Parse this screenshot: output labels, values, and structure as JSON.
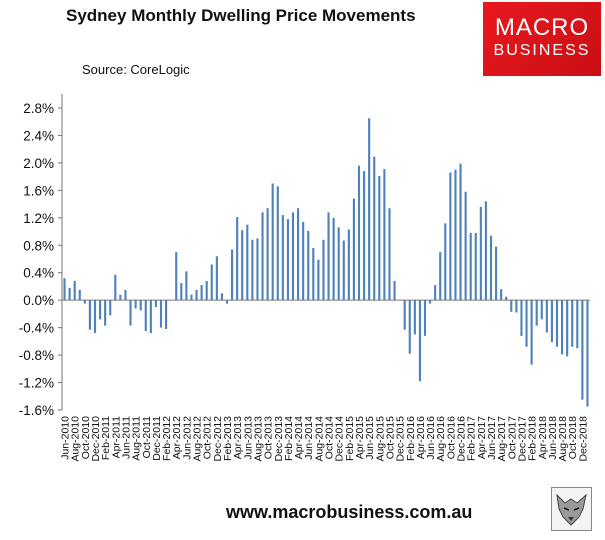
{
  "header": {
    "title": "Sydney Monthly Dwelling Price Movements",
    "source": "Source: CoreLogic"
  },
  "logo": {
    "line1": "MACRO",
    "line2": "BUSINESS"
  },
  "footer": {
    "url": "www.macrobusiness.com.au"
  },
  "colors": {
    "bar": "#4f81bd",
    "logo_red": "#e8191f"
  },
  "icons": {
    "logo": "macrobusiness-logo",
    "wolf": "wolf-emblem"
  },
  "chart_data": {
    "type": "bar",
    "title": "Sydney Monthly Dwelling Price Movements",
    "ylim": [
      -0.016,
      0.028
    ],
    "y_ticks": [
      "2.8%",
      "2.4%",
      "2.0%",
      "1.6%",
      "1.2%",
      "0.8%",
      "0.4%",
      "0.0%",
      "-0.4%",
      "-0.8%",
      "-1.2%",
      "-1.6%"
    ],
    "y_tick_values": [
      0.028,
      0.024,
      0.02,
      0.016,
      0.012,
      0.008,
      0.004,
      0.0,
      -0.004,
      -0.008,
      -0.012,
      -0.016
    ],
    "x_tick_labels": [
      "Jun-2010",
      "Aug-2010",
      "Oct-2010",
      "Dec-2010",
      "Feb-2011",
      "Apr-2011",
      "Jun-2011",
      "Aug-2011",
      "Oct-2011",
      "Dec-2011",
      "Feb-2012",
      "Apr-2012",
      "Jun-2012",
      "Aug-2012",
      "Oct-2012",
      "Dec-2012",
      "Feb-2013",
      "Apr-2013",
      "Jun-2013",
      "Aug-2013",
      "Oct-2013",
      "Dec-2013",
      "Feb-2014",
      "Apr-2014",
      "Jun-2014",
      "Aug-2014",
      "Oct-2014",
      "Dec-2014",
      "Feb-2015",
      "Apr-2015",
      "Jun-2015",
      "Aug-2015",
      "Oct-2015",
      "Dec-2015",
      "Feb-2016",
      "Apr-2016",
      "Jun-2016",
      "Aug-2016",
      "Oct-2016",
      "Dec-2016",
      "Feb-2017",
      "Apr-2017",
      "Jun-2017",
      "Aug-2017",
      "Oct-2017",
      "Dec-2017",
      "Feb-2018",
      "Apr-2018",
      "Jun-2018",
      "Aug-2018",
      "Oct-2018",
      "Dec-2018"
    ],
    "start_period": "Jun-2010",
    "grid": false,
    "legend": "none",
    "series": [
      {
        "values": [
          0.0032,
          0.0018,
          0.0028,
          0.0015,
          -0.0005,
          -0.0043,
          -0.0048,
          -0.0028,
          -0.0037,
          -0.0022,
          0.0037,
          0.0008,
          0.0015,
          -0.0037,
          -0.0012,
          -0.0015,
          -0.0045,
          -0.0048,
          -0.001,
          -0.004,
          -0.0042,
          0.0,
          0.007,
          0.0025,
          0.0042,
          0.0008,
          0.0015,
          0.0022,
          0.0028,
          0.0052,
          0.0064,
          0.001,
          -0.0005,
          0.0074,
          0.0121,
          0.0102,
          0.011,
          0.0088,
          0.009,
          0.0128,
          0.0134,
          0.017,
          0.0166,
          0.0124,
          0.0118,
          0.0128,
          0.0134,
          0.0114,
          0.0101,
          0.0076,
          0.0059,
          0.0088,
          0.0128,
          0.012,
          0.0106,
          0.0087,
          0.0103,
          0.0148,
          0.0196,
          0.0188,
          0.0265,
          0.0209,
          0.0181,
          0.0191,
          0.0134,
          0.0028,
          0.0,
          -0.0043,
          -0.0078,
          -0.005,
          -0.0118,
          -0.0052,
          -0.0005,
          0.0022,
          0.007,
          0.0112,
          0.0186,
          0.019,
          0.0199,
          0.0158,
          0.0098,
          0.0098,
          0.0136,
          0.0144,
          0.0094,
          0.0078,
          0.0016,
          0.0005,
          -0.0017,
          -0.0018,
          -0.0052,
          -0.0068,
          -0.0094,
          -0.0037,
          -0.0028,
          -0.0047,
          -0.0061,
          -0.0068,
          -0.0079,
          -0.0082,
          -0.0068,
          -0.007,
          -0.0145,
          -0.0155
        ]
      }
    ]
  }
}
